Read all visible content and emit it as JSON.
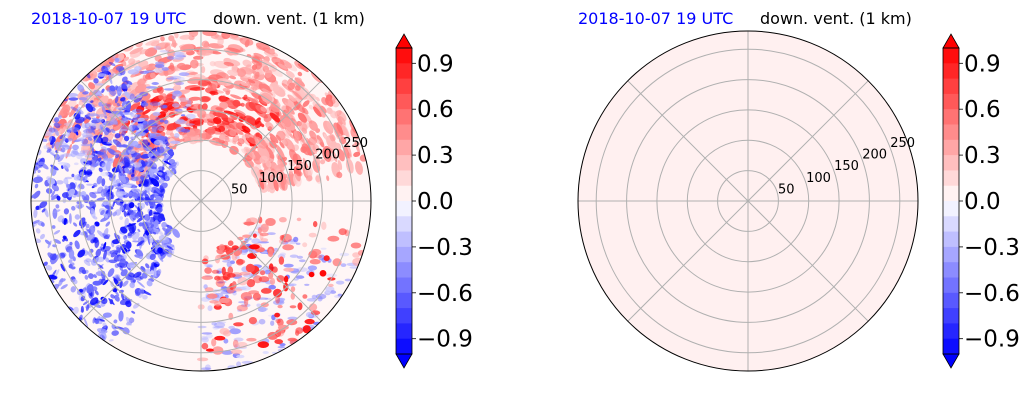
{
  "colors": {
    "title_time": "#0000ff",
    "grid": "#b0b0b0",
    "background_tint": "#fff0f0",
    "cmap_neg_end": "#0000ff",
    "cmap_mid": "#ffffff",
    "cmap_pos_end": "#ff0000"
  },
  "chart_data": [
    {
      "type": "polar-heatmap",
      "title_left": "2018-10-07 19 UTC",
      "title_right": "down. vent. (1 km)",
      "ring_labels": [
        "50",
        "100",
        "150",
        "200",
        "250"
      ],
      "ring_values": [
        50,
        100,
        150,
        200,
        250
      ],
      "r_max": 280,
      "spoke_angles_deg": [
        0,
        45,
        90,
        135,
        180,
        225,
        270,
        315
      ],
      "grid": true,
      "field": "structured",
      "colorbar": {
        "levels_count": 20,
        "vmin": -1.0,
        "vmax": 1.0,
        "extend": "both",
        "ticks": [
          0.9,
          0.6,
          0.3,
          0.0,
          -0.3,
          -0.6,
          -0.9
        ],
        "tick_labels": [
          "0.9",
          "0.6",
          "0.3",
          "0.0",
          "−0.3",
          "−0.6",
          "−0.9"
        ]
      }
    },
    {
      "type": "polar-heatmap",
      "title_left": "2018-10-07 19 UTC",
      "title_right": "down. vent. (1 km)",
      "ring_labels": [
        "50",
        "100",
        "150",
        "200",
        "250"
      ],
      "ring_values": [
        50,
        100,
        150,
        200,
        250
      ],
      "r_max": 280,
      "spoke_angles_deg": [
        0,
        45,
        90,
        135,
        180,
        225,
        270,
        315
      ],
      "grid": true,
      "field": "uniform",
      "uniform_value": 0.05,
      "colorbar": {
        "levels_count": 20,
        "vmin": -1.0,
        "vmax": 1.0,
        "extend": "both",
        "ticks": [
          0.9,
          0.6,
          0.3,
          0.0,
          -0.3,
          -0.6,
          -0.9
        ],
        "tick_labels": [
          "0.9",
          "0.6",
          "0.3",
          "0.0",
          "−0.3",
          "−0.6",
          "−0.9"
        ]
      }
    }
  ]
}
